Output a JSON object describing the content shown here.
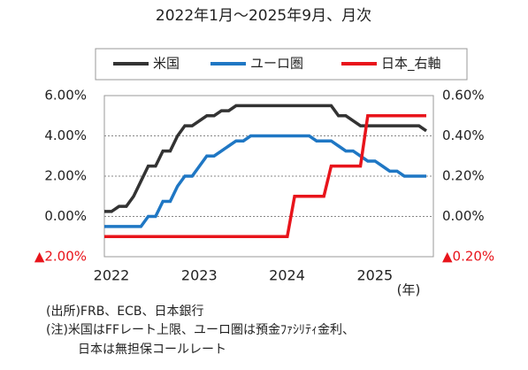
{
  "chart_data": {
    "type": "line",
    "title": "2022年1月～2025年9月、月次",
    "categories": [
      "2022",
      null,
      null,
      null,
      null,
      null,
      null,
      null,
      null,
      null,
      null,
      null,
      "2023",
      null,
      null,
      null,
      null,
      null,
      null,
      null,
      null,
      null,
      null,
      null,
      "2024",
      null,
      null,
      null,
      null,
      null,
      null,
      null,
      null,
      null,
      null,
      null,
      "2025",
      null,
      null,
      null,
      null,
      null,
      null,
      null,
      null
    ],
    "x_unit_label": "(年)",
    "series": [
      {
        "name": "米国",
        "color": "#333333",
        "axis": "y",
        "values": [
          0.25,
          0.25,
          0.5,
          0.5,
          1.0,
          1.75,
          2.5,
          2.5,
          3.25,
          3.25,
          4.0,
          4.5,
          4.5,
          4.75,
          5.0,
          5.0,
          5.25,
          5.25,
          5.5,
          5.5,
          5.5,
          5.5,
          5.5,
          5.5,
          5.5,
          5.5,
          5.5,
          5.5,
          5.5,
          5.5,
          5.5,
          5.5,
          5.0,
          5.0,
          4.75,
          4.5,
          4.5,
          4.5,
          4.5,
          4.5,
          4.5,
          4.5,
          4.5,
          4.5,
          4.25
        ]
      },
      {
        "name": "ユーロ圏",
        "color": "#1f77c4",
        "axis": "y",
        "values": [
          -0.5,
          -0.5,
          -0.5,
          -0.5,
          -0.5,
          -0.5,
          0.0,
          0.0,
          0.75,
          0.75,
          1.5,
          2.0,
          2.0,
          2.5,
          3.0,
          3.0,
          3.25,
          3.5,
          3.75,
          3.75,
          4.0,
          4.0,
          4.0,
          4.0,
          4.0,
          4.0,
          4.0,
          4.0,
          4.0,
          3.75,
          3.75,
          3.75,
          3.5,
          3.25,
          3.25,
          3.0,
          2.75,
          2.75,
          2.5,
          2.25,
          2.25,
          2.0,
          2.0,
          2.0,
          2.0
        ]
      },
      {
        "name": "日本_右軸",
        "color": "#e8141b",
        "axis": "y2",
        "values": [
          -0.1,
          -0.1,
          -0.1,
          -0.1,
          -0.1,
          -0.1,
          -0.1,
          -0.1,
          -0.1,
          -0.1,
          -0.1,
          -0.1,
          -0.1,
          -0.1,
          -0.1,
          -0.1,
          -0.1,
          -0.1,
          -0.1,
          -0.1,
          -0.1,
          -0.1,
          -0.1,
          -0.1,
          -0.1,
          -0.1,
          0.1,
          0.1,
          0.1,
          0.1,
          0.1,
          0.25,
          0.25,
          0.25,
          0.25,
          0.25,
          0.5,
          0.5,
          0.5,
          0.5,
          0.5,
          0.5,
          0.5,
          0.5,
          0.5
        ]
      }
    ],
    "ylim": [
      -2,
      6
    ],
    "yticks": [
      {
        "value": -2,
        "label": "▲2.00%"
      },
      {
        "value": 0,
        "label": "0.00%"
      },
      {
        "value": 2,
        "label": "2.00%"
      },
      {
        "value": 4,
        "label": "4.00%"
      },
      {
        "value": 6,
        "label": "6.00%"
      }
    ],
    "y2lim": [
      -0.2,
      0.6
    ],
    "y2ticks": [
      {
        "value": -0.2,
        "label": "▲0.20%"
      },
      {
        "value": 0,
        "label": "0.00%"
      },
      {
        "value": 0.2,
        "label": "0.20%"
      },
      {
        "value": 0.4,
        "label": "0.40%"
      },
      {
        "value": 0.6,
        "label": "0.60%"
      }
    ],
    "negative_tick_color": "#e8141b",
    "grid": true,
    "legend": "top",
    "notes": [
      "(出所)FRB、ECB、日本銀行",
      "(注)米国はFFレート上限、ユーロ圏は預金ﾌｧｼﾘﾃｨ金利、",
      "日本は無担保コールレート"
    ]
  }
}
